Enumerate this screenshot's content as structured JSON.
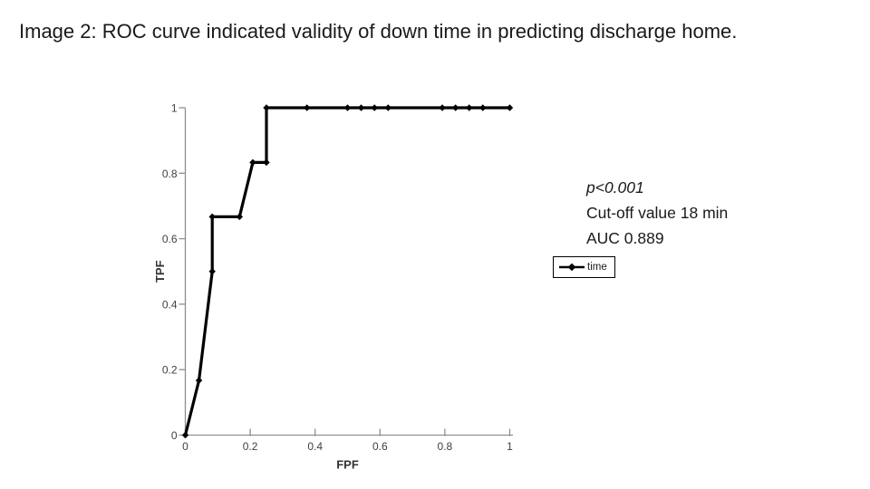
{
  "page": {
    "title": "Image 2: ROC curve indicated validity of down time in predicting discharge home."
  },
  "annotations": {
    "p_value": "p<0.001",
    "cutoff": "Cut-off value 18 min",
    "auc": "AUC 0.889"
  },
  "legend": {
    "label": "time"
  },
  "colors": {
    "series": "#000000",
    "axis": "#8e8e8e",
    "tick_label": "#404040",
    "text": "#1a1a1a"
  },
  "chart_data": {
    "type": "line",
    "title": "",
    "xlabel": "FPF",
    "ylabel": "TPF",
    "xlim": [
      0,
      1
    ],
    "ylim": [
      0,
      1
    ],
    "grid": false,
    "x_ticks": [
      "0",
      "0.2",
      "0.4",
      "0.6",
      "0.8",
      "1"
    ],
    "y_ticks": [
      "0",
      "0.2",
      "0.4",
      "0.6",
      "0.8",
      "1"
    ],
    "legend_position": "right",
    "series": [
      {
        "name": "time",
        "marker": "diamond",
        "color": "#000000",
        "points": [
          [
            0,
            0
          ],
          [
            0.042,
            0.167
          ],
          [
            0.083,
            0.5
          ],
          [
            0.083,
            0.667
          ],
          [
            0.167,
            0.667
          ],
          [
            0.208,
            0.833
          ],
          [
            0.25,
            0.833
          ],
          [
            0.25,
            1
          ],
          [
            0.375,
            1
          ],
          [
            0.5,
            1
          ],
          [
            0.542,
            1
          ],
          [
            0.583,
            1
          ],
          [
            0.625,
            1
          ],
          [
            0.792,
            1
          ],
          [
            0.833,
            1
          ],
          [
            0.875,
            1
          ],
          [
            0.917,
            1
          ],
          [
            1,
            1
          ]
        ]
      }
    ]
  }
}
